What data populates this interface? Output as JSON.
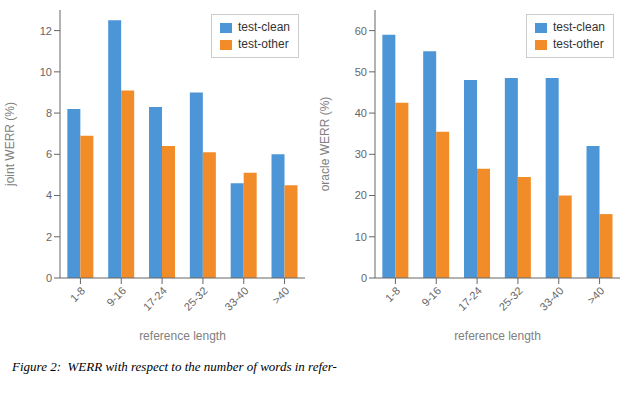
{
  "chart_data": [
    {
      "type": "bar",
      "categories": [
        "1-8",
        "9-16",
        "17-24",
        "25-32",
        "33-40",
        ">40"
      ],
      "series": [
        {
          "name": "test-clean",
          "color": "#4C96D7",
          "values": [
            8.2,
            12.5,
            8.3,
            9.0,
            4.6,
            6.0
          ]
        },
        {
          "name": "test-other",
          "color": "#F28C28",
          "values": [
            6.9,
            9.1,
            6.4,
            6.1,
            5.1,
            4.5
          ]
        }
      ],
      "xlabel": "reference length",
      "ylabel": "joint WERR (%)",
      "ylim": [
        0,
        13
      ],
      "yticks": [
        0,
        2,
        4,
        6,
        8,
        10,
        12
      ],
      "legend": "upper right",
      "grid": false
    },
    {
      "type": "bar",
      "categories": [
        "1-8",
        "9-16",
        "17-24",
        "25-32",
        "33-40",
        ">40"
      ],
      "series": [
        {
          "name": "test-clean",
          "color": "#4C96D7",
          "values": [
            59.0,
            55.0,
            48.0,
            48.5,
            48.5,
            32.0
          ]
        },
        {
          "name": "test-other",
          "color": "#F28C28",
          "values": [
            42.5,
            35.5,
            26.5,
            24.5,
            20.0,
            15.5
          ]
        }
      ],
      "xlabel": "reference length",
      "ylabel": "oracle WERR (%)",
      "ylim": [
        0,
        65
      ],
      "yticks": [
        0,
        10,
        20,
        30,
        40,
        50,
        60
      ],
      "legend": "upper right",
      "grid": false
    }
  ],
  "annotations": [
    "Figure 2:  WERR with respect to the number of words in refer-"
  ]
}
